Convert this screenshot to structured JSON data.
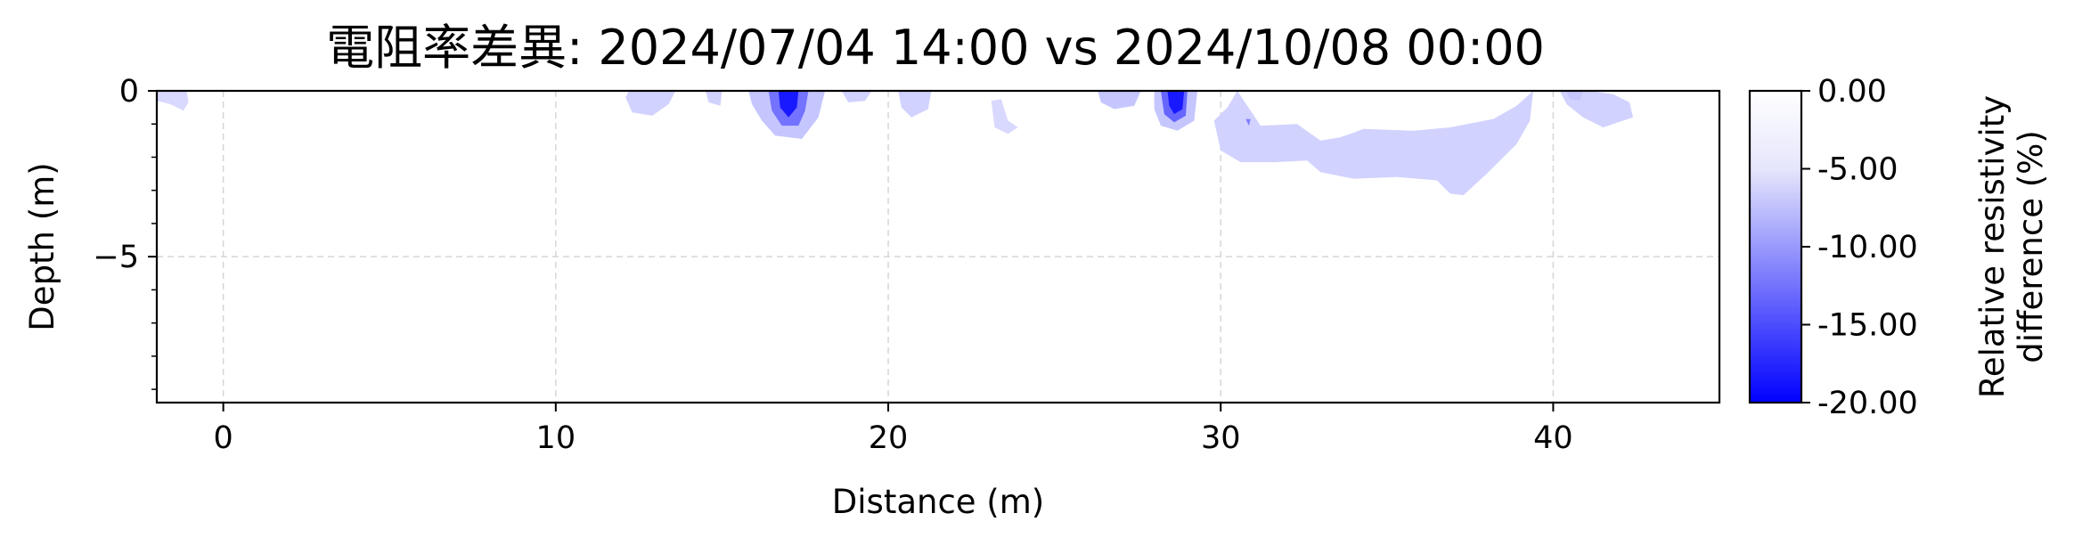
{
  "chart_data": {
    "type": "heatmap",
    "title": "電阻率差異: 2024/07/04 14:00 vs 2024/10/08 00:00",
    "xlabel": "Distance (m)",
    "ylabel": "Depth (m)",
    "xlim": [
      -2,
      45
    ],
    "ylim": [
      -9.4,
      0
    ],
    "xticks": [
      0,
      10,
      20,
      30,
      40
    ],
    "xtick_labels": [
      "0",
      "10",
      "20",
      "30",
      "40"
    ],
    "yticks": [
      0,
      -5
    ],
    "ytick_labels": [
      "0",
      "−5"
    ],
    "y_minor_ticks": [
      -1,
      -2,
      -3,
      -4,
      -6,
      -7,
      -8,
      -9
    ],
    "grid": true,
    "colorbar": {
      "label_line1": "Relative resistivity",
      "label_line2": "difference (%)",
      "range": [
        -20,
        0
      ],
      "ticks": [
        0,
        -5,
        -10,
        -15,
        -20
      ],
      "tick_labels": [
        "0.00",
        "-5.00",
        "-10.00",
        "-15.00",
        "-20.00"
      ],
      "color_high": "#ffffff",
      "color_low": "#0000ff"
    },
    "anomalies": [
      {
        "name": "broad-zone",
        "value": -3.5,
        "outline": [
          [
            30.5,
            0
          ],
          [
            31.2,
            -1.05
          ],
          [
            32.3,
            -1.0
          ],
          [
            33,
            -1.5
          ],
          [
            33.6,
            -1.4
          ],
          [
            34.3,
            -1.15
          ],
          [
            35.8,
            -1.2
          ],
          [
            36.9,
            -1.1
          ],
          [
            38.2,
            -0.85
          ],
          [
            38.9,
            -0.45
          ],
          [
            39.4,
            0
          ],
          [
            39.3,
            -0.9
          ],
          [
            38.9,
            -1.6
          ],
          [
            38,
            -2.5
          ],
          [
            37.3,
            -3.15
          ],
          [
            36.9,
            -3.1
          ],
          [
            36.5,
            -2.7
          ],
          [
            35.3,
            -2.6
          ],
          [
            34,
            -2.65
          ],
          [
            33,
            -2.45
          ],
          [
            32.6,
            -2.1
          ],
          [
            31.6,
            -2.15
          ],
          [
            30.6,
            -2.15
          ],
          [
            30,
            -1.8
          ],
          [
            29.8,
            -0.9
          ],
          [
            30.2,
            -0.5
          ]
        ]
      },
      {
        "name": "left-edge",
        "value": -3.0,
        "outline": [
          [
            -2,
            0
          ],
          [
            -1.1,
            0
          ],
          [
            -1.05,
            -0.35
          ],
          [
            -1.2,
            -0.6
          ],
          [
            -1.6,
            -0.4
          ],
          [
            -2,
            -0.3
          ]
        ]
      },
      {
        "name": "zone-12-13",
        "value": -3.5,
        "outline": [
          [
            12.2,
            0
          ],
          [
            13.6,
            0
          ],
          [
            13.4,
            -0.4
          ],
          [
            12.9,
            -0.75
          ],
          [
            12.3,
            -0.65
          ],
          [
            12.1,
            -0.2
          ]
        ]
      },
      {
        "name": "zone-14-15",
        "value": -3.5,
        "outline": [
          [
            14.5,
            0
          ],
          [
            15.0,
            0
          ],
          [
            14.95,
            -0.45
          ],
          [
            14.6,
            -0.35
          ]
        ]
      },
      {
        "name": "zone-16-17",
        "value": -4.5,
        "outline": [
          [
            15.8,
            0
          ],
          [
            18.1,
            0
          ],
          [
            17.9,
            -0.8
          ],
          [
            17.4,
            -1.45
          ],
          [
            16.6,
            -1.35
          ],
          [
            16.2,
            -0.9
          ],
          [
            15.9,
            -0.4
          ]
        ]
      },
      {
        "name": "zone-16-17-core",
        "value": -11,
        "outline": [
          [
            16.4,
            0
          ],
          [
            17.6,
            0
          ],
          [
            17.5,
            -0.6
          ],
          [
            17.3,
            -1.05
          ],
          [
            16.8,
            -1.05
          ],
          [
            16.5,
            -0.6
          ]
        ]
      },
      {
        "name": "zone-16-17-peak",
        "value": -18,
        "outline": [
          [
            16.7,
            0
          ],
          [
            17.3,
            0
          ],
          [
            17.25,
            -0.5
          ],
          [
            17,
            -0.8
          ],
          [
            16.75,
            -0.5
          ]
        ]
      },
      {
        "name": "zone-18-19",
        "value": -3.5,
        "outline": [
          [
            18.6,
            0
          ],
          [
            19.5,
            0
          ],
          [
            19.3,
            -0.3
          ],
          [
            18.8,
            -0.35
          ]
        ]
      },
      {
        "name": "zone-20-21",
        "value": -3.5,
        "outline": [
          [
            20.3,
            0
          ],
          [
            21.3,
            0
          ],
          [
            21.2,
            -0.55
          ],
          [
            20.7,
            -0.8
          ],
          [
            20.4,
            -0.5
          ]
        ]
      },
      {
        "name": "zone-23",
        "value": -3.0,
        "outline": [
          [
            23.1,
            -0.3
          ],
          [
            23.4,
            -0.25
          ],
          [
            23.6,
            -0.9
          ],
          [
            23.9,
            -1.1
          ],
          [
            23.6,
            -1.3
          ],
          [
            23.2,
            -1.1
          ]
        ]
      },
      {
        "name": "zone-26-27",
        "value": -4.5,
        "outline": [
          [
            26.3,
            0
          ],
          [
            27.6,
            0
          ],
          [
            27.4,
            -0.45
          ],
          [
            26.8,
            -0.55
          ],
          [
            26.4,
            -0.35
          ]
        ]
      },
      {
        "name": "zone-28-29",
        "value": -4.5,
        "outline": [
          [
            28.0,
            0
          ],
          [
            29.3,
            0
          ],
          [
            29.2,
            -0.9
          ],
          [
            28.7,
            -1.2
          ],
          [
            28.2,
            -1.05
          ],
          [
            28.0,
            -0.55
          ]
        ]
      },
      {
        "name": "zone-28-29-core",
        "value": -12,
        "outline": [
          [
            28.2,
            0
          ],
          [
            29.0,
            0
          ],
          [
            28.95,
            -0.75
          ],
          [
            28.6,
            -0.95
          ],
          [
            28.3,
            -0.7
          ]
        ]
      },
      {
        "name": "zone-28-29-peak",
        "value": -18,
        "outline": [
          [
            28.4,
            0
          ],
          [
            28.9,
            0
          ],
          [
            28.85,
            -0.55
          ],
          [
            28.6,
            -0.7
          ],
          [
            28.45,
            -0.45
          ]
        ]
      },
      {
        "name": "zone-31-dot",
        "value": -10,
        "outline": [
          [
            30.75,
            -0.85
          ],
          [
            30.9,
            -0.85
          ],
          [
            30.85,
            -1.05
          ]
        ]
      },
      {
        "name": "zone-40-42",
        "value": -3.5,
        "outline": [
          [
            40.2,
            0
          ],
          [
            41.1,
            0
          ],
          [
            41.8,
            -0.1
          ],
          [
            42.3,
            -0.35
          ],
          [
            42.4,
            -0.8
          ],
          [
            41.5,
            -1.1
          ],
          [
            40.9,
            -0.8
          ],
          [
            40.4,
            -0.4
          ]
        ]
      },
      {
        "name": "zone-40-core",
        "value": -4.5,
        "outline": [
          [
            40.4,
            0
          ],
          [
            40.9,
            0
          ],
          [
            40.8,
            -0.3
          ],
          [
            40.5,
            -0.25
          ]
        ]
      }
    ]
  }
}
